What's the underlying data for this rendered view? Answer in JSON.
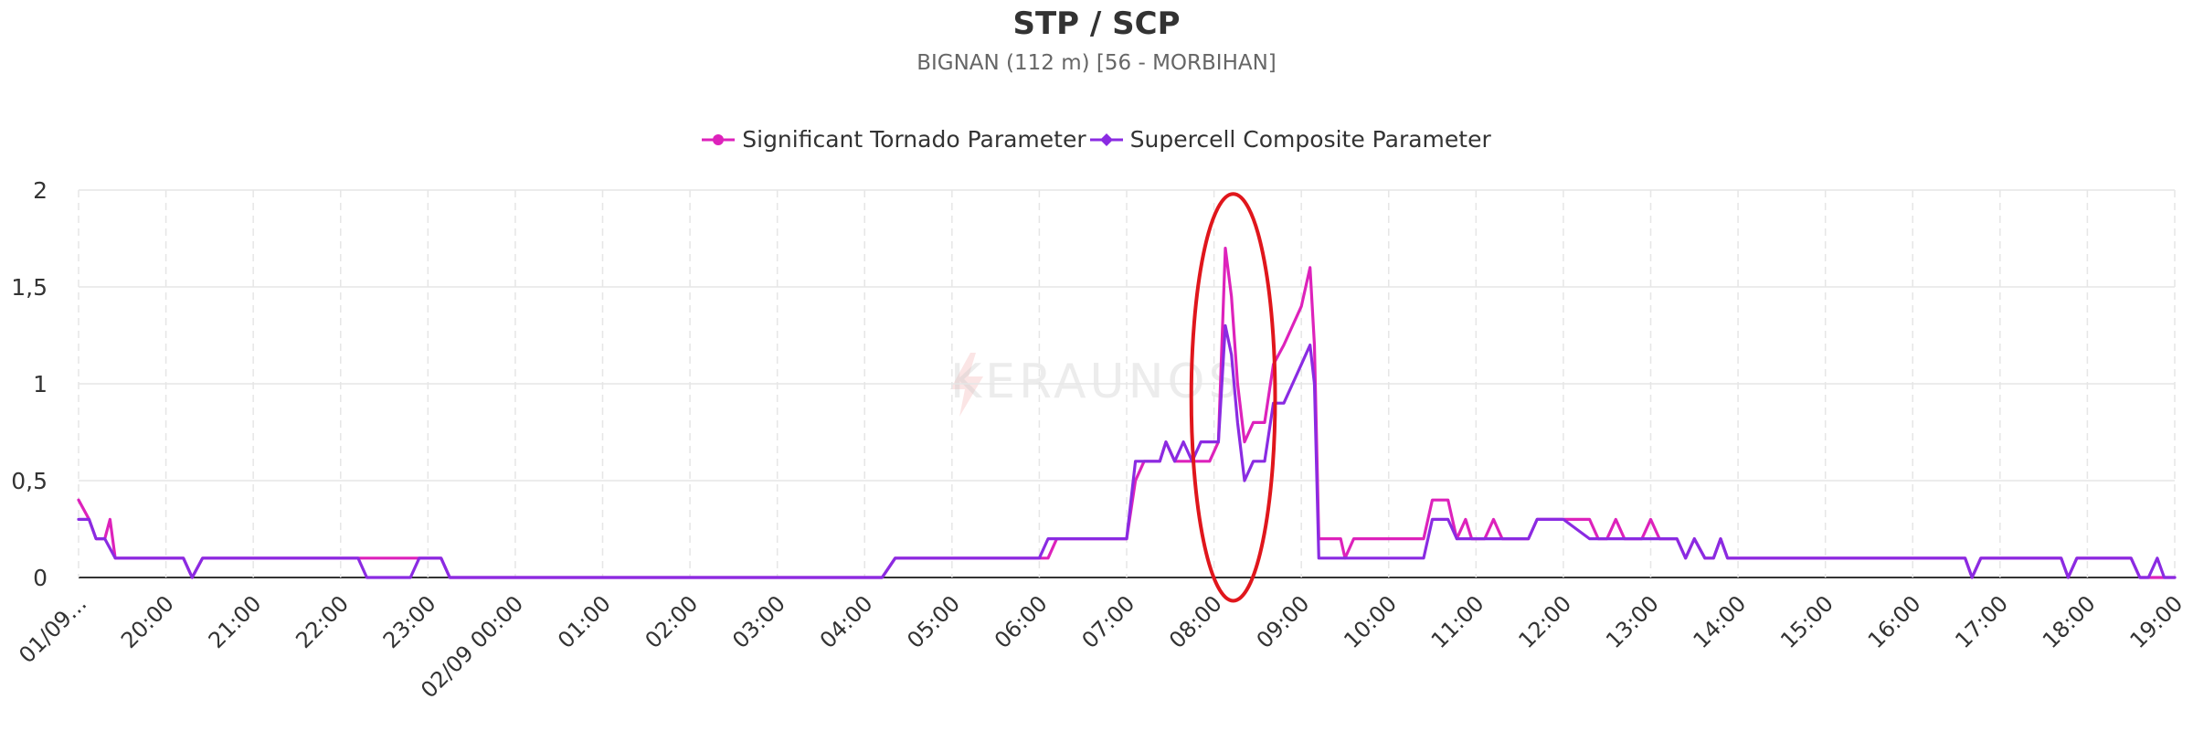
{
  "colors": {
    "stp": "#dd22bb",
    "scp": "#8a2be2",
    "annotation": "#e0161c",
    "grid": "#e6e6e6",
    "text": "#333333",
    "watermark": "#f0d0d0"
  },
  "watermark_text": "KERAUNOS",
  "chart_data": {
    "type": "line",
    "title": "STP / SCP",
    "subtitle": "BIGNAN (112 m) [56 - MORBIHAN]",
    "xlabel": "",
    "ylabel": "",
    "ylim": [
      0,
      2
    ],
    "yticks": [
      "0",
      "0,5",
      "1",
      "1,5",
      "2"
    ],
    "yticks_values": [
      0,
      0.5,
      1,
      1.5,
      2
    ],
    "xlim": [
      19.0,
      43.0
    ],
    "xtick_values": [
      19,
      20,
      21,
      22,
      23,
      24,
      25,
      26,
      27,
      28,
      29,
      30,
      31,
      32,
      33,
      34,
      35,
      36,
      37,
      38,
      39,
      40,
      41,
      42,
      43
    ],
    "xticks": [
      "01/09...",
      "20:00",
      "21:00",
      "22:00",
      "23:00",
      "02/09 00:00",
      "01:00",
      "02:00",
      "03:00",
      "04:00",
      "05:00",
      "06:00",
      "07:00",
      "08:00",
      "09:00",
      "10:00",
      "11:00",
      "12:00",
      "13:00",
      "14:00",
      "15:00",
      "16:00",
      "17:00",
      "18:00",
      "19:00"
    ],
    "grid": true,
    "legend_position": "top-center",
    "annotation": {
      "type": "ellipse",
      "x_center": 32.22,
      "y_center": 0.93,
      "x_radius": 0.48,
      "y_radius": 1.05
    },
    "series": [
      {
        "name": "Significant Tornado Parameter",
        "points": [
          [
            19.0,
            0.4
          ],
          [
            19.12,
            0.3
          ],
          [
            19.2,
            0.2
          ],
          [
            19.3,
            0.2
          ],
          [
            19.36,
            0.3
          ],
          [
            19.42,
            0.1
          ],
          [
            20.0,
            0.1
          ],
          [
            20.2,
            0.1
          ],
          [
            20.3,
            0.0
          ],
          [
            20.42,
            0.1
          ],
          [
            22.0,
            0.1
          ],
          [
            22.8,
            0.1
          ],
          [
            23.0,
            0.1
          ],
          [
            23.15,
            0.1
          ],
          [
            23.25,
            0.0
          ],
          [
            26.0,
            0.0
          ],
          [
            27.0,
            0.0
          ],
          [
            28.2,
            0.0
          ],
          [
            28.35,
            0.1
          ],
          [
            29.0,
            0.1
          ],
          [
            30.0,
            0.1
          ],
          [
            30.1,
            0.1
          ],
          [
            30.2,
            0.2
          ],
          [
            30.8,
            0.2
          ],
          [
            31.0,
            0.2
          ],
          [
            31.1,
            0.5
          ],
          [
            31.2,
            0.6
          ],
          [
            31.3,
            0.6
          ],
          [
            31.38,
            0.6
          ],
          [
            31.45,
            0.7
          ],
          [
            31.55,
            0.6
          ],
          [
            31.65,
            0.6
          ],
          [
            31.75,
            0.6
          ],
          [
            31.85,
            0.6
          ],
          [
            31.95,
            0.6
          ],
          [
            32.05,
            0.7
          ],
          [
            32.13,
            1.7
          ],
          [
            32.2,
            1.45
          ],
          [
            32.27,
            1.0
          ],
          [
            32.35,
            0.7
          ],
          [
            32.45,
            0.8
          ],
          [
            32.58,
            0.8
          ],
          [
            32.68,
            1.1
          ],
          [
            32.8,
            1.2
          ],
          [
            32.9,
            1.3
          ],
          [
            33.0,
            1.4
          ],
          [
            33.1,
            1.6
          ],
          [
            33.15,
            1.2
          ],
          [
            33.2,
            0.2
          ],
          [
            33.3,
            0.2
          ],
          [
            33.45,
            0.2
          ],
          [
            33.5,
            0.1
          ],
          [
            33.6,
            0.2
          ],
          [
            34.0,
            0.2
          ],
          [
            34.4,
            0.2
          ],
          [
            34.5,
            0.4
          ],
          [
            34.68,
            0.4
          ],
          [
            34.78,
            0.2
          ],
          [
            34.88,
            0.3
          ],
          [
            34.95,
            0.2
          ],
          [
            35.1,
            0.2
          ],
          [
            35.2,
            0.3
          ],
          [
            35.3,
            0.2
          ],
          [
            35.6,
            0.2
          ],
          [
            35.7,
            0.3
          ],
          [
            36.0,
            0.3
          ],
          [
            36.3,
            0.3
          ],
          [
            36.4,
            0.2
          ],
          [
            36.5,
            0.2
          ],
          [
            36.6,
            0.3
          ],
          [
            36.7,
            0.2
          ],
          [
            36.9,
            0.2
          ],
          [
            37.0,
            0.3
          ],
          [
            37.1,
            0.2
          ],
          [
            37.3,
            0.2
          ],
          [
            37.4,
            0.1
          ],
          [
            37.5,
            0.2
          ],
          [
            37.62,
            0.1
          ],
          [
            37.72,
            0.1
          ],
          [
            37.8,
            0.2
          ],
          [
            37.88,
            0.1
          ],
          [
            38.0,
            0.1
          ],
          [
            39.0,
            0.1
          ],
          [
            40.0,
            0.1
          ],
          [
            40.6,
            0.1
          ],
          [
            40.68,
            0.0
          ],
          [
            40.78,
            0.1
          ],
          [
            41.0,
            0.1
          ],
          [
            41.7,
            0.1
          ],
          [
            41.78,
            0.0
          ],
          [
            41.88,
            0.1
          ],
          [
            42.0,
            0.1
          ],
          [
            42.5,
            0.1
          ],
          [
            42.6,
            0.0
          ],
          [
            42.8,
            0.0
          ],
          [
            43.0,
            0.0
          ]
        ]
      },
      {
        "name": "Supercell Composite Parameter",
        "points": [
          [
            19.0,
            0.3
          ],
          [
            19.12,
            0.3
          ],
          [
            19.2,
            0.2
          ],
          [
            19.3,
            0.2
          ],
          [
            19.42,
            0.1
          ],
          [
            20.0,
            0.1
          ],
          [
            20.2,
            0.1
          ],
          [
            20.3,
            0.0
          ],
          [
            20.42,
            0.1
          ],
          [
            22.0,
            0.1
          ],
          [
            22.2,
            0.1
          ],
          [
            22.3,
            0.0
          ],
          [
            22.8,
            0.0
          ],
          [
            22.9,
            0.1
          ],
          [
            23.0,
            0.1
          ],
          [
            23.15,
            0.1
          ],
          [
            23.25,
            0.0
          ],
          [
            26.0,
            0.0
          ],
          [
            27.0,
            0.0
          ],
          [
            28.2,
            0.0
          ],
          [
            28.35,
            0.1
          ],
          [
            29.0,
            0.1
          ],
          [
            30.0,
            0.1
          ],
          [
            30.1,
            0.2
          ],
          [
            31.0,
            0.2
          ],
          [
            31.1,
            0.6
          ],
          [
            31.2,
            0.6
          ],
          [
            31.3,
            0.6
          ],
          [
            31.38,
            0.6
          ],
          [
            31.45,
            0.7
          ],
          [
            31.55,
            0.6
          ],
          [
            31.65,
            0.7
          ],
          [
            31.75,
            0.6
          ],
          [
            31.85,
            0.7
          ],
          [
            31.95,
            0.7
          ],
          [
            32.05,
            0.7
          ],
          [
            32.13,
            1.3
          ],
          [
            32.2,
            1.15
          ],
          [
            32.27,
            0.8
          ],
          [
            32.35,
            0.5
          ],
          [
            32.45,
            0.6
          ],
          [
            32.58,
            0.6
          ],
          [
            32.68,
            0.9
          ],
          [
            32.8,
            0.9
          ],
          [
            32.9,
            1.0
          ],
          [
            33.0,
            1.1
          ],
          [
            33.1,
            1.2
          ],
          [
            33.15,
            1.0
          ],
          [
            33.2,
            0.1
          ],
          [
            33.3,
            0.1
          ],
          [
            33.45,
            0.1
          ],
          [
            34.0,
            0.1
          ],
          [
            34.4,
            0.1
          ],
          [
            34.5,
            0.3
          ],
          [
            34.68,
            0.3
          ],
          [
            34.78,
            0.2
          ],
          [
            34.88,
            0.2
          ],
          [
            35.0,
            0.2
          ],
          [
            35.6,
            0.2
          ],
          [
            35.7,
            0.3
          ],
          [
            36.0,
            0.3
          ],
          [
            36.3,
            0.2
          ],
          [
            36.5,
            0.2
          ],
          [
            36.7,
            0.2
          ],
          [
            37.0,
            0.2
          ],
          [
            37.1,
            0.2
          ],
          [
            37.3,
            0.2
          ],
          [
            37.4,
            0.1
          ],
          [
            37.5,
            0.2
          ],
          [
            37.62,
            0.1
          ],
          [
            37.72,
            0.1
          ],
          [
            37.8,
            0.2
          ],
          [
            37.88,
            0.1
          ],
          [
            38.0,
            0.1
          ],
          [
            39.0,
            0.1
          ],
          [
            40.0,
            0.1
          ],
          [
            40.6,
            0.1
          ],
          [
            40.68,
            0.0
          ],
          [
            40.78,
            0.1
          ],
          [
            41.0,
            0.1
          ],
          [
            41.7,
            0.1
          ],
          [
            41.78,
            0.0
          ],
          [
            41.88,
            0.1
          ],
          [
            42.0,
            0.1
          ],
          [
            42.5,
            0.1
          ],
          [
            42.6,
            0.0
          ],
          [
            42.7,
            0.0
          ],
          [
            42.8,
            0.1
          ],
          [
            42.88,
            0.0
          ],
          [
            43.0,
            0.0
          ]
        ]
      }
    ]
  }
}
